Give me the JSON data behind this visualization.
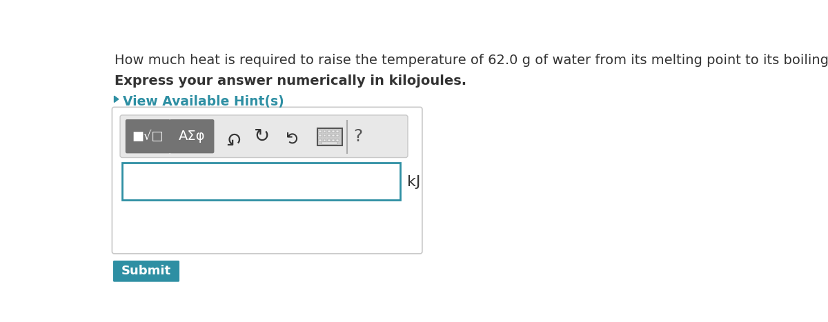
{
  "bg_color": "#ffffff",
  "question_text": "How much heat is required to raise the temperature of 62.0 g of water from its melting point to its boiling point?",
  "bold_text": "Express your answer numerically in kilojoules.",
  "hint_text": "View Available Hint(s)",
  "hint_color": "#2e8fa3",
  "unit_label": "kJ",
  "submit_text": "Submit",
  "submit_bg": "#2e8fa3",
  "submit_text_color": "#ffffff",
  "toolbar_bg": "#e8e8e8",
  "toolbar_border": "#c8c8c8",
  "input_border_color": "#2e8fa3",
  "outer_box_border": "#c8c8c8",
  "outer_box_bg": "#ffffff",
  "icon_btn_bg": "#737373",
  "icon_btn_text": "#ffffff",
  "question_font_size": 14,
  "bold_font_size": 14,
  "hint_font_size": 13.5,
  "unit_font_size": 16,
  "text_color": "#333333"
}
